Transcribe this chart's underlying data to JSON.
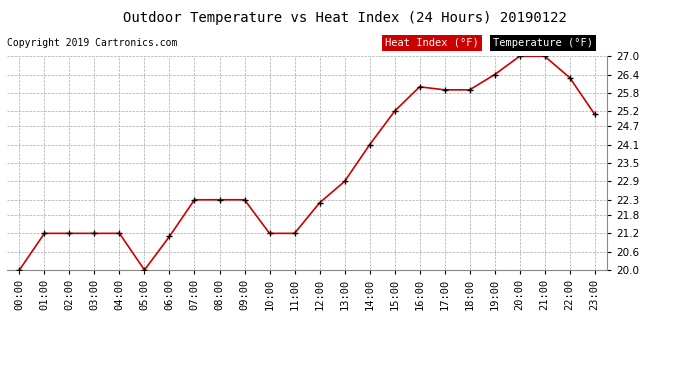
{
  "title": "Outdoor Temperature vs Heat Index (24 Hours) 20190122",
  "copyright": "Copyright 2019 Cartronics.com",
  "x_labels": [
    "00:00",
    "01:00",
    "02:00",
    "03:00",
    "04:00",
    "05:00",
    "06:00",
    "07:00",
    "08:00",
    "09:00",
    "10:00",
    "11:00",
    "12:00",
    "13:00",
    "14:00",
    "15:00",
    "16:00",
    "17:00",
    "18:00",
    "19:00",
    "20:00",
    "21:00",
    "22:00",
    "23:00"
  ],
  "temperature": [
    20.0,
    21.2,
    21.2,
    21.2,
    21.2,
    20.0,
    21.1,
    22.3,
    22.3,
    22.3,
    21.2,
    21.2,
    22.2,
    22.9,
    24.1,
    25.2,
    26.0,
    25.9,
    25.9,
    26.4,
    27.0,
    27.0,
    26.3,
    25.1
  ],
  "heat_index": [
    20.0,
    21.2,
    21.2,
    21.2,
    21.2,
    20.0,
    21.1,
    22.3,
    22.3,
    22.3,
    21.2,
    21.2,
    22.2,
    22.9,
    24.1,
    25.2,
    26.0,
    25.9,
    25.9,
    26.4,
    27.0,
    27.0,
    26.3,
    25.1
  ],
  "line_color": "#cc0000",
  "marker_color": "#000000",
  "background_color": "#ffffff",
  "plot_bg_color": "#ffffff",
  "grid_color": "#aaaaaa",
  "ylim_min": 20.0,
  "ylim_max": 27.0,
  "ytick_values": [
    20.0,
    20.6,
    21.2,
    21.8,
    22.3,
    22.9,
    23.5,
    24.1,
    24.7,
    25.2,
    25.8,
    26.4,
    27.0
  ],
  "legend_heat_index_bg": "#cc0000",
  "legend_temp_bg": "#000000",
  "legend_heat_index_label": "Heat Index (°F)",
  "legend_temp_label": "Temperature (°F)"
}
